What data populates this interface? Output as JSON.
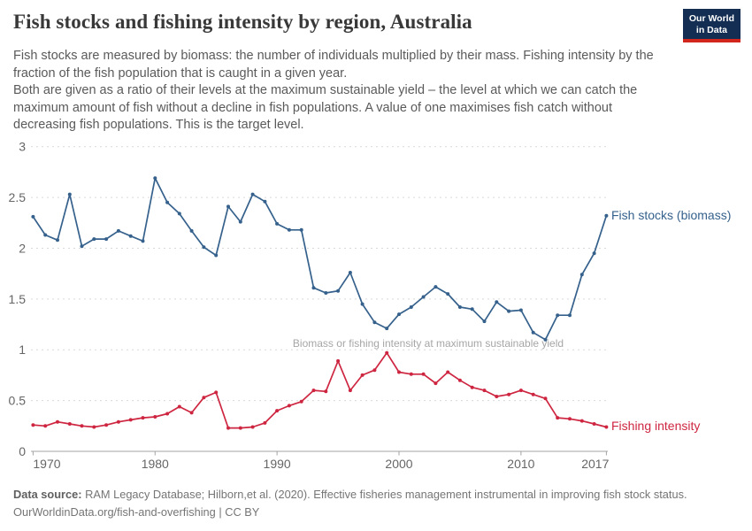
{
  "header": {
    "title": "Fish stocks and fishing intensity by region, Australia",
    "logo": {
      "line1": "Our World",
      "line2": "in Data"
    }
  },
  "subtitle": {
    "para1": "Fish stocks are measured by biomass: the number of individuals multiplied by their mass. Fishing intensity by the fraction of the fish population that is caught in a given year.",
    "para2": "Both are given as a ratio of their levels at the maximum sustainable yield – the level at which we can catch the maximum amount of fish without a decline in fish populations. A value of one maximises fish catch without decreasing fish populations. This is the target level."
  },
  "chart_data": {
    "type": "line",
    "title": "Fish stocks and fishing intensity by region, Australia",
    "x": [
      1970,
      1971,
      1972,
      1973,
      1974,
      1975,
      1976,
      1977,
      1978,
      1979,
      1980,
      1981,
      1982,
      1983,
      1984,
      1985,
      1986,
      1987,
      1988,
      1989,
      1990,
      1991,
      1992,
      1993,
      1994,
      1995,
      1996,
      1997,
      1998,
      1999,
      2000,
      2001,
      2002,
      2003,
      2004,
      2005,
      2006,
      2007,
      2008,
      2009,
      2010,
      2011,
      2012,
      2013,
      2014,
      2015,
      2016,
      2017
    ],
    "series": [
      {
        "name": "Fish stocks (biomass)",
        "color": "#35618C",
        "values": [
          2.31,
          2.13,
          2.08,
          2.53,
          2.02,
          2.09,
          2.09,
          2.17,
          2.12,
          2.07,
          2.69,
          2.45,
          2.34,
          2.17,
          2.01,
          1.93,
          2.41,
          2.26,
          2.53,
          2.46,
          2.24,
          2.18,
          2.18,
          1.61,
          1.56,
          1.58,
          1.76,
          1.45,
          1.27,
          1.21,
          1.35,
          1.42,
          1.52,
          1.62,
          1.55,
          1.42,
          1.4,
          1.28,
          1.47,
          1.38,
          1.39,
          1.17,
          1.1,
          1.34,
          1.34,
          1.74,
          1.95,
          2.32
        ]
      },
      {
        "name": "Fishing intensity",
        "color": "#CE2641",
        "values": [
          0.26,
          0.25,
          0.29,
          0.27,
          0.25,
          0.24,
          0.26,
          0.29,
          0.31,
          0.33,
          0.34,
          0.37,
          0.44,
          0.38,
          0.53,
          0.58,
          0.23,
          0.23,
          0.24,
          0.28,
          0.4,
          0.45,
          0.49,
          0.6,
          0.59,
          0.89,
          0.6,
          0.75,
          0.8,
          0.97,
          0.78,
          0.76,
          0.76,
          0.67,
          0.78,
          0.7,
          0.63,
          0.6,
          0.54,
          0.56,
          0.6,
          0.56,
          0.52,
          0.33,
          0.32,
          0.3,
          0.27,
          0.24
        ]
      }
    ],
    "xlabel": "",
    "ylabel": "",
    "ylim": [
      0,
      3
    ],
    "yticks": [
      0,
      0.5,
      1,
      1.5,
      2,
      2.5,
      3
    ],
    "xticks": [
      1970,
      1980,
      1990,
      2000,
      2010,
      2017
    ],
    "grid": "horizontal-dashed",
    "legend_position": "end-of-line-labels",
    "annotation": "Biomass or fishing intensity at maximum sustainable yield"
  },
  "footer": {
    "source_label": "Data source:",
    "source_text": " RAM Legacy Database; Hilborn,et al. (2020). Effective fisheries management instrumental in improving fish stock status.",
    "url_line": "OurWorldinData.org/fish-and-overfishing | CC BY"
  }
}
